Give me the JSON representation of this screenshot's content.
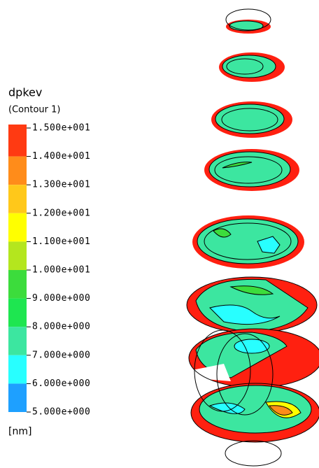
{
  "legend": {
    "title": "dpkev",
    "subtitle": "(Contour  1)",
    "ticks": [
      {
        "value": 15,
        "label": "1.500e+001"
      },
      {
        "value": 14,
        "label": "1.400e+001"
      },
      {
        "value": 13,
        "label": "1.300e+001"
      },
      {
        "value": 12,
        "label": "1.200e+001"
      },
      {
        "value": 11,
        "label": "1.100e+001"
      },
      {
        "value": 10,
        "label": "1.000e+001"
      },
      {
        "value": 9,
        "label": "9.000e+000"
      },
      {
        "value": 8,
        "label": "8.000e+000"
      },
      {
        "value": 7,
        "label": "7.000e+000"
      },
      {
        "value": 6,
        "label": "6.000e+000"
      },
      {
        "value": 5,
        "label": "5.000e+000"
      }
    ],
    "colors": [
      "#ff3a12",
      "#ff8c1a",
      "#ffc81a",
      "#ffff00",
      "#b4e61e",
      "#3cdc3c",
      "#1ee650",
      "#3ce6a0",
      "#28ffff",
      "#1ea0ff",
      "#1e3cff"
    ],
    "unit": "[nm]"
  }
}
